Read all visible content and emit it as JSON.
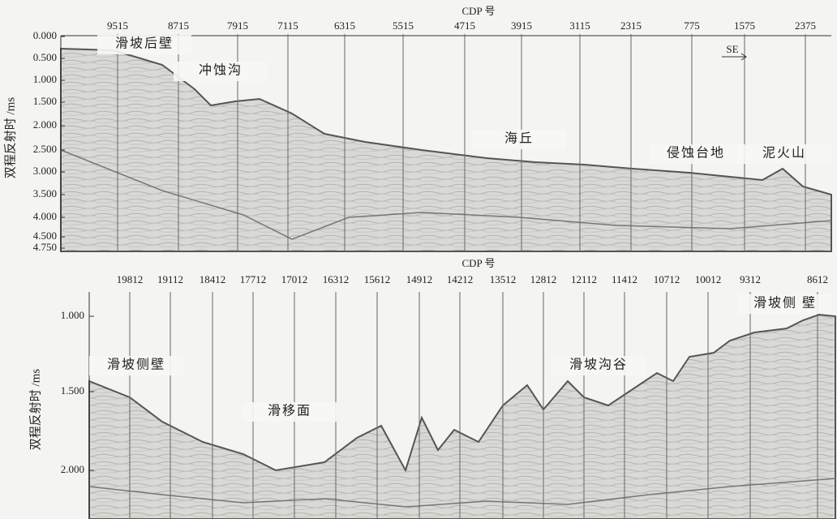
{
  "panels": [
    {
      "x_title": "CDP 号",
      "x_labels": [
        "9515",
        "8715",
        "7915",
        "7115",
        "6315",
        "5515",
        "4715",
        "3915",
        "3115",
        "2315",
        "775",
        "1575",
        "2375"
      ],
      "y_title": "双程反射时 /ms",
      "y_labels": [
        "0.000",
        "0.500",
        "1.000",
        "1.500",
        "2.000",
        "2.500",
        "3.000",
        "3.500",
        "4.000",
        "4.500",
        "4.750"
      ],
      "annotations": [
        "滑坡后壁",
        "冲蚀沟",
        "海丘",
        "侵蚀台地",
        "泥火山",
        "SE"
      ]
    },
    {
      "x_title": "CDP 号",
      "x_labels": [
        "19812",
        "19112",
        "18412",
        "17712",
        "17012",
        "16312",
        "15612",
        "14912",
        "14212",
        "13512",
        "12812",
        "12112",
        "11412",
        "10712",
        "10012",
        "9312",
        "8612"
      ],
      "y_title": "双程反射时 /ms",
      "y_labels": [
        "1.000",
        "1.500",
        "2.000"
      ],
      "annotations": [
        "滑坡侧壁",
        "滑移面",
        "滑坡沟谷",
        "滑坡侧 壁"
      ]
    }
  ]
}
